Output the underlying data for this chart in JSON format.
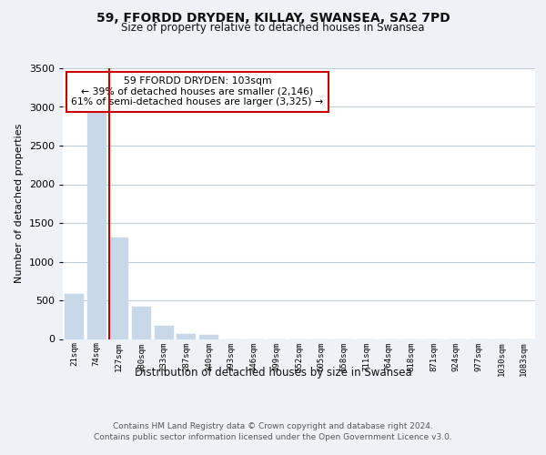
{
  "title": "59, FFORDD DRYDEN, KILLAY, SWANSEA, SA2 7PD",
  "subtitle": "Size of property relative to detached houses in Swansea",
  "xlabel": "Distribution of detached houses by size in Swansea",
  "ylabel": "Number of detached properties",
  "bar_labels": [
    "21sqm",
    "74sqm",
    "127sqm",
    "180sqm",
    "233sqm",
    "287sqm",
    "340sqm",
    "393sqm",
    "446sqm",
    "499sqm",
    "552sqm",
    "605sqm",
    "658sqm",
    "711sqm",
    "764sqm",
    "818sqm",
    "871sqm",
    "924sqm",
    "977sqm",
    "1030sqm",
    "1083sqm"
  ],
  "bar_values": [
    580,
    2920,
    1310,
    420,
    170,
    65,
    50,
    0,
    0,
    0,
    0,
    0,
    0,
    0,
    0,
    0,
    0,
    0,
    0,
    0,
    0
  ],
  "bar_color": "#c8d8e8",
  "marker_label": "59 FFORDD DRYDEN: 103sqm",
  "annotation_line1": "← 39% of detached houses are smaller (2,146)",
  "annotation_line2": "61% of semi-detached houses are larger (3,325) →",
  "marker_color": "#cc0000",
  "ylim": [
    0,
    3500
  ],
  "yticks": [
    0,
    500,
    1000,
    1500,
    2000,
    2500,
    3000,
    3500
  ],
  "footnote1": "Contains HM Land Registry data © Crown copyright and database right 2024.",
  "footnote2": "Contains public sector information licensed under the Open Government Licence v3.0.",
  "bg_color": "#eef2f6",
  "plot_bg_color": "#ffffff",
  "grid_color": "#c0ccd8",
  "annotation_box_color": "#ffffff",
  "annotation_box_edge": "#cc0000"
}
